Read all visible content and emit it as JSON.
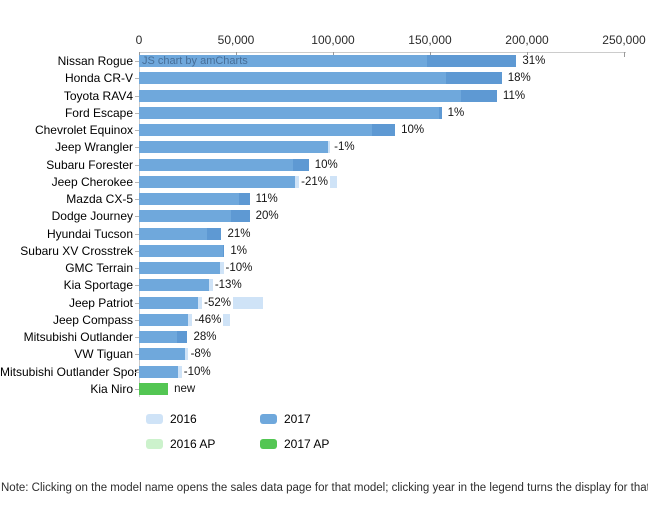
{
  "watermark": "JS chart by amCharts",
  "note": "Note: Clicking on the model name opens the sales data page for that model; clicking year in the legend turns the display for that year on/off",
  "chart_data": {
    "type": "bar",
    "orientation": "horizontal",
    "title": "",
    "value_axis": {
      "position": "top",
      "min": 0,
      "max": 250000,
      "tick_interval": 50000,
      "tick_labels": [
        "0",
        "50,000",
        "100,000",
        "150,000",
        "200,000",
        "250,000"
      ],
      "grid": false
    },
    "categories": [
      "Nissan Rogue",
      "Honda CR-V",
      "Toyota RAV4",
      "Ford Escape",
      "Chevrolet Equinox",
      "Jeep Wrangler",
      "Subaru Forester",
      "Jeep Cherokee",
      "Mazda CX-5",
      "Dodge Journey",
      "Hyundai Tucson",
      "Subaru XV Crosstrek",
      "GMC Terrain",
      "Kia Sportage",
      "Jeep Patriot",
      "Jeep Compass",
      "Mitsubishi Outlander",
      "VW Tiguan",
      "Mitsubishi Outlander Sport",
      "Kia Niro"
    ],
    "series": [
      {
        "name": "2016",
        "color": "#cfe3f7",
        "values": [
          148500,
          158500,
          166000,
          154500,
          120000,
          98500,
          79500,
          102000,
          51500,
          47500,
          35000,
          43500,
          46000,
          41500,
          64000,
          47000,
          19500,
          25500,
          22000,
          null
        ]
      },
      {
        "name": "2017",
        "color": "#6fa8dc",
        "color_solo": "#5e99d3",
        "values": [
          194500,
          187000,
          184500,
          156000,
          132000,
          97500,
          87500,
          80500,
          57000,
          57000,
          42500,
          44000,
          41500,
          36000,
          30500,
          25500,
          25000,
          23500,
          20000,
          null
        ]
      },
      {
        "name": "2016 AP",
        "color": "#ccf2cc",
        "values": [
          null,
          null,
          null,
          null,
          null,
          null,
          null,
          null,
          null,
          null,
          null,
          null,
          null,
          null,
          null,
          null,
          null,
          null,
          null,
          null
        ]
      },
      {
        "name": "2017 AP",
        "color": "#53c653",
        "values": [
          null,
          null,
          null,
          null,
          null,
          null,
          null,
          null,
          null,
          null,
          null,
          null,
          null,
          null,
          null,
          null,
          null,
          null,
          null,
          15000
        ]
      }
    ],
    "bar_labels": [
      "31%",
      "18%",
      "11%",
      "1%",
      "10%",
      "-1%",
      "10%",
      "-21%",
      "11%",
      "20%",
      "21%",
      "1%",
      "-10%",
      "-13%",
      "-52%",
      "-46%",
      "28%",
      "-8%",
      "-10%",
      "new"
    ],
    "legend": {
      "position": "bottom",
      "items": [
        {
          "label": "2016",
          "color": "#cfe3f7"
        },
        {
          "label": "2017",
          "color": "#6fa8dc"
        },
        {
          "label": "2016 AP",
          "color": "#ccf2cc"
        },
        {
          "label": "2017 AP",
          "color": "#53c653"
        }
      ]
    }
  }
}
